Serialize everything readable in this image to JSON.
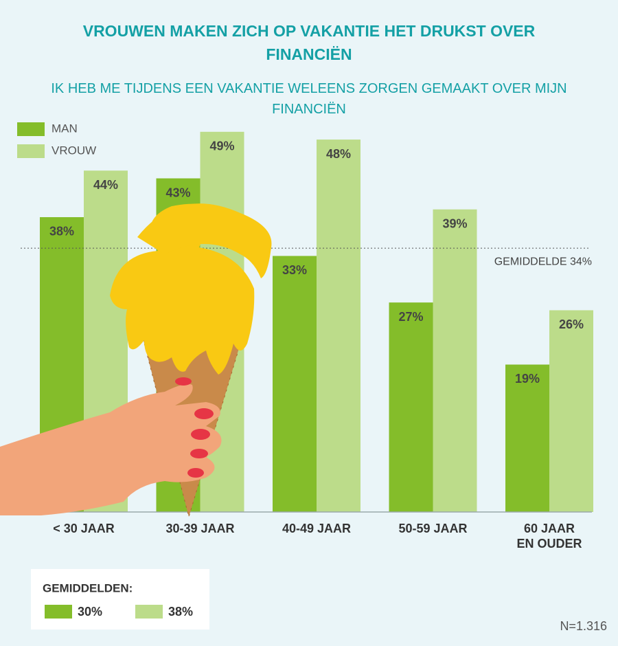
{
  "chart_data": {
    "type": "bar",
    "title": "VROUWEN MAKEN ZICH OP VAKANTIE HET DRUKST OVER FINANCIËN",
    "subtitle": "IK HEB ME TIJDENS EEN VAKANTIE WELEENS ZORGEN GEMAAKT OVER MIJN FINANCIËN",
    "categories": [
      "< 30 JAAR",
      "30-39 JAAR",
      "40-49 JAAR",
      "50-59 JAAR",
      "60 JAAR EN OUDER"
    ],
    "series": [
      {
        "name": "MAN",
        "color": "#84bd2a",
        "values": [
          38,
          43,
          33,
          27,
          19
        ],
        "value_labels": [
          "38%",
          "43%",
          "33%",
          "27%",
          "19%"
        ]
      },
      {
        "name": "VROUW",
        "color": "#bcdc8a",
        "values": [
          44,
          49,
          48,
          39,
          26
        ],
        "value_labels": [
          "44%",
          "49%",
          "48%",
          "39%",
          "26%"
        ]
      }
    ],
    "reference_line": {
      "value": 34,
      "label": "GEMIDDELDE 34%"
    },
    "averages": {
      "title": "GEMIDDELDEN:",
      "values": [
        30,
        38
      ],
      "value_labels": [
        "30%",
        "38%"
      ]
    },
    "note": "N=1.316"
  }
}
